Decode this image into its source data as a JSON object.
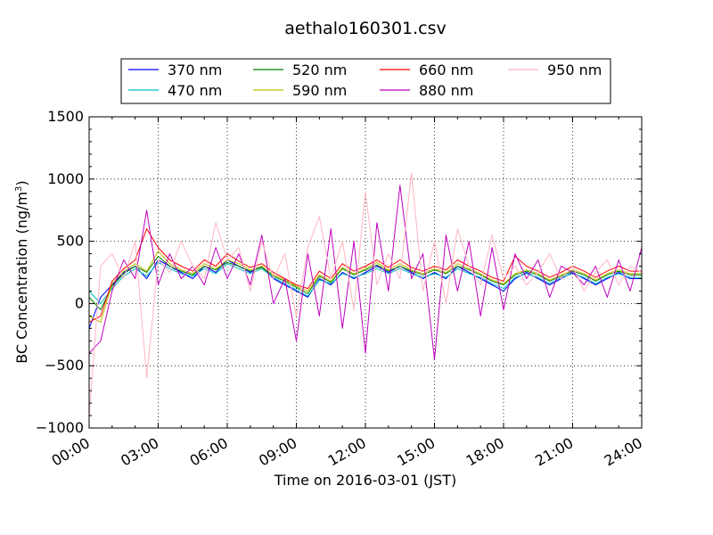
{
  "chart_data": {
    "type": "line",
    "title": "aethalo160301.csv",
    "xlabel": "Time on 2016-03-01 (JST)",
    "ylabel": "BC Concentration (ng/m",
    "ylabel_sup": "3",
    "ylabel_tail": ")",
    "xlim": [
      "2016-03-01 00:00",
      "2016-03-02 00:00"
    ],
    "ylim": [
      -1000,
      1500
    ],
    "grid": true,
    "legend_position": "top-center",
    "x_tick_labels": [
      "00:00",
      "03:00",
      "06:00",
      "09:00",
      "12:00",
      "15:00",
      "18:00",
      "21:00",
      "24:00"
    ],
    "y_tick_labels": [
      "−1000",
      "−500",
      "0",
      "500",
      "1000",
      "1500"
    ],
    "y_ticks": [
      -1000,
      -500,
      0,
      500,
      1000,
      1500
    ],
    "x_hours": [
      0.0,
      0.5,
      1.0,
      1.5,
      2.0,
      2.5,
      3.0,
      3.5,
      4.0,
      4.5,
      5.0,
      5.5,
      6.0,
      6.5,
      7.0,
      7.5,
      8.0,
      8.5,
      9.0,
      9.5,
      10.0,
      10.5,
      11.0,
      11.5,
      12.0,
      12.5,
      13.0,
      13.5,
      14.0,
      14.5,
      15.0,
      15.5,
      16.0,
      16.5,
      17.0,
      17.5,
      18.0,
      18.5,
      19.0,
      19.5,
      20.0,
      20.5,
      21.0,
      21.5,
      22.0,
      22.5,
      23.0,
      23.5,
      24.0
    ],
    "series": [
      {
        "name": "370 nm",
        "color": "#0000ff",
        "values": [
          -200,
          50,
          150,
          250,
          300,
          200,
          350,
          300,
          250,
          200,
          300,
          250,
          350,
          300,
          250,
          300,
          200,
          150,
          100,
          50,
          200,
          150,
          250,
          200,
          250,
          300,
          250,
          300,
          250,
          200,
          250,
          200,
          300,
          250,
          200,
          150,
          100,
          200,
          250,
          200,
          150,
          200,
          250,
          200,
          150,
          200,
          250,
          200,
          200
        ]
      },
      {
        "name": "470 nm",
        "color": "#00bfbf",
        "values": [
          100,
          0,
          120,
          220,
          280,
          220,
          330,
          280,
          240,
          220,
          280,
          240,
          320,
          280,
          240,
          280,
          210,
          160,
          110,
          60,
          190,
          160,
          240,
          210,
          240,
          280,
          240,
          280,
          240,
          210,
          240,
          210,
          280,
          240,
          210,
          160,
          120,
          210,
          240,
          210,
          160,
          210,
          240,
          210,
          160,
          210,
          240,
          210,
          210
        ]
      },
      {
        "name": "520 nm",
        "color": "#008000",
        "values": [
          50,
          -50,
          140,
          240,
          300,
          250,
          380,
          300,
          260,
          230,
          300,
          270,
          330,
          300,
          260,
          290,
          220,
          180,
          130,
          80,
          220,
          170,
          280,
          230,
          270,
          310,
          260,
          300,
          260,
          230,
          270,
          240,
          300,
          270,
          230,
          180,
          150,
          230,
          260,
          230,
          180,
          220,
          260,
          230,
          180,
          230,
          260,
          230,
          230
        ]
      },
      {
        "name": "590 nm",
        "color": "#bfbf00",
        "values": [
          -100,
          -150,
          160,
          260,
          320,
          260,
          420,
          320,
          270,
          240,
          320,
          280,
          350,
          320,
          270,
          300,
          230,
          190,
          140,
          100,
          230,
          180,
          290,
          240,
          280,
          330,
          270,
          320,
          270,
          240,
          280,
          250,
          320,
          280,
          240,
          190,
          160,
          240,
          270,
          240,
          190,
          230,
          270,
          240,
          190,
          240,
          270,
          240,
          240
        ]
      },
      {
        "name": "660 nm",
        "color": "#ff0000",
        "values": [
          -150,
          -100,
          180,
          280,
          350,
          600,
          450,
          350,
          300,
          260,
          350,
          300,
          400,
          340,
          290,
          320,
          250,
          200,
          150,
          120,
          260,
          200,
          320,
          260,
          300,
          350,
          290,
          350,
          290,
          260,
          300,
          270,
          350,
          300,
          260,
          210,
          180,
          380,
          300,
          260,
          210,
          250,
          300,
          260,
          210,
          260,
          300,
          260,
          260
        ]
      },
      {
        "name": "880 nm",
        "color": "#bf00bf",
        "values": [
          -400,
          -300,
          100,
          350,
          200,
          750,
          150,
          400,
          200,
          300,
          150,
          450,
          200,
          400,
          150,
          550,
          0,
          200,
          -300,
          400,
          -100,
          600,
          -200,
          500,
          -400,
          650,
          100,
          950,
          200,
          400,
          -450,
          550,
          100,
          500,
          -100,
          450,
          -50,
          400,
          200,
          350,
          50,
          300,
          250,
          150,
          300,
          50,
          350,
          100,
          450
        ]
      },
      {
        "name": "950 nm",
        "color": "#ffb6c1",
        "values": [
          -900,
          300,
          400,
          200,
          500,
          -600,
          350,
          250,
          500,
          300,
          200,
          650,
          350,
          450,
          100,
          500,
          200,
          400,
          -100,
          450,
          700,
          200,
          500,
          -50,
          900,
          150,
          400,
          200,
          1050,
          100,
          500,
          0,
          600,
          300,
          150,
          550,
          200,
          300,
          150,
          250,
          400,
          200,
          300,
          100,
          250,
          350,
          150,
          300,
          250
        ]
      }
    ]
  }
}
